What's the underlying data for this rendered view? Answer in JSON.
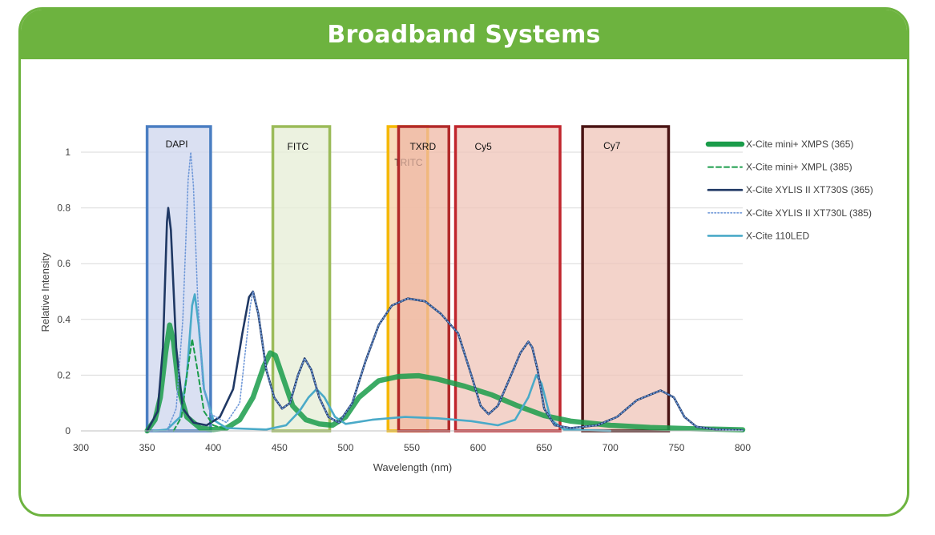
{
  "page": {
    "title": "Broadband Systems"
  },
  "colors": {
    "header_green": "#6db33f",
    "border_green": "#6db33f"
  },
  "chart_data": {
    "type": "line",
    "xlabel": "Wavelength (nm)",
    "ylabel": "Relative Intensity",
    "xlim": [
      300,
      800
    ],
    "ylim": [
      0,
      1
    ],
    "x_ticks": [
      300,
      350,
      400,
      450,
      500,
      550,
      600,
      650,
      700,
      750,
      800
    ],
    "y_ticks": [
      0,
      0.2,
      0.4,
      0.6,
      0.8,
      1
    ],
    "y_tick_labels": [
      "0",
      "0.2",
      "0.4",
      "0.6",
      "0.8",
      "1"
    ],
    "grid": "horizontal",
    "legend": "right",
    "filter_bands": [
      {
        "name": "DAPI",
        "range": [
          350,
          398
        ],
        "fill": "#cdd6ee",
        "stroke": "#4a7ec2"
      },
      {
        "name": "FITC",
        "range": [
          445,
          488
        ],
        "fill": "#e6edd6",
        "stroke": "#9bbb59"
      },
      {
        "name": "TRITC",
        "range": [
          532,
          562
        ],
        "fill": "#f6cfa5",
        "stroke": "#f5b800"
      },
      {
        "name": "TXRD",
        "range": [
          540,
          578
        ],
        "fill": "#efb8a6",
        "stroke": "#b22a2a"
      },
      {
        "name": "Cy5",
        "range": [
          583,
          662
        ],
        "fill": "#efc4b8",
        "stroke": "#c0262d"
      },
      {
        "name": "Cy7",
        "range": [
          679,
          744
        ],
        "fill": "#efc4b8",
        "stroke": "#4a1414"
      }
    ],
    "series": [
      {
        "name": "X-Cite mini+ XMPS (365)",
        "color": "#1a9c4a",
        "style": "thick",
        "points": [
          [
            350,
            0
          ],
          [
            356,
            0.04
          ],
          [
            360,
            0.12
          ],
          [
            364,
            0.28
          ],
          [
            367,
            0.38
          ],
          [
            370,
            0.32
          ],
          [
            374,
            0.15
          ],
          [
            380,
            0.05
          ],
          [
            390,
            0.01
          ],
          [
            400,
            0.005
          ],
          [
            410,
            0.01
          ],
          [
            420,
            0.04
          ],
          [
            430,
            0.12
          ],
          [
            438,
            0.23
          ],
          [
            443,
            0.28
          ],
          [
            447,
            0.27
          ],
          [
            452,
            0.2
          ],
          [
            460,
            0.09
          ],
          [
            470,
            0.04
          ],
          [
            480,
            0.025
          ],
          [
            490,
            0.02
          ],
          [
            500,
            0.05
          ],
          [
            510,
            0.12
          ],
          [
            525,
            0.18
          ],
          [
            540,
            0.195
          ],
          [
            555,
            0.198
          ],
          [
            570,
            0.185
          ],
          [
            590,
            0.16
          ],
          [
            610,
            0.13
          ],
          [
            630,
            0.09
          ],
          [
            650,
            0.055
          ],
          [
            670,
            0.035
          ],
          [
            700,
            0.02
          ],
          [
            730,
            0.012
          ],
          [
            760,
            0.008
          ],
          [
            800,
            0.004
          ]
        ]
      },
      {
        "name": "X-Cite mini+ XMPL (385)",
        "color": "#1a9c4a",
        "style": "dashed",
        "points": [
          [
            370,
            0
          ],
          [
            376,
            0.05
          ],
          [
            380,
            0.2
          ],
          [
            384,
            0.33
          ],
          [
            388,
            0.22
          ],
          [
            393,
            0.07
          ],
          [
            400,
            0.02
          ],
          [
            410,
            0.005
          ]
        ]
      },
      {
        "name": "X-Cite XYLIS II XT730S (365)",
        "color": "#1f3864",
        "style": "solid",
        "points": [
          [
            350,
            0
          ],
          [
            358,
            0.07
          ],
          [
            362,
            0.3
          ],
          [
            365,
            0.75
          ],
          [
            366,
            0.8
          ],
          [
            368,
            0.72
          ],
          [
            372,
            0.3
          ],
          [
            377,
            0.08
          ],
          [
            385,
            0.03
          ],
          [
            395,
            0.02
          ],
          [
            405,
            0.05
          ],
          [
            415,
            0.15
          ],
          [
            422,
            0.35
          ],
          [
            427,
            0.48
          ],
          [
            430,
            0.5
          ],
          [
            434,
            0.42
          ],
          [
            440,
            0.22
          ],
          [
            446,
            0.12
          ],
          [
            452,
            0.08
          ],
          [
            458,
            0.1
          ],
          [
            464,
            0.2
          ],
          [
            469,
            0.26
          ],
          [
            474,
            0.22
          ],
          [
            480,
            0.12
          ],
          [
            487,
            0.05
          ],
          [
            495,
            0.03
          ],
          [
            505,
            0.1
          ],
          [
            515,
            0.25
          ],
          [
            525,
            0.38
          ],
          [
            535,
            0.45
          ],
          [
            547,
            0.475
          ],
          [
            560,
            0.465
          ],
          [
            572,
            0.42
          ],
          [
            585,
            0.35
          ],
          [
            595,
            0.2
          ],
          [
            602,
            0.09
          ],
          [
            608,
            0.06
          ],
          [
            615,
            0.09
          ],
          [
            625,
            0.2
          ],
          [
            632,
            0.28
          ],
          [
            638,
            0.32
          ],
          [
            641,
            0.3
          ],
          [
            645,
            0.22
          ],
          [
            650,
            0.08
          ],
          [
            658,
            0.02
          ],
          [
            670,
            0.01
          ],
          [
            690,
            0.02
          ],
          [
            705,
            0.05
          ],
          [
            720,
            0.11
          ],
          [
            738,
            0.145
          ],
          [
            748,
            0.12
          ],
          [
            756,
            0.05
          ],
          [
            765,
            0.015
          ],
          [
            780,
            0.005
          ],
          [
            800,
            0.002
          ]
        ]
      },
      {
        "name": "X-Cite XYLIS II XT730L (385)",
        "color": "#6f98d8",
        "style": "dotted",
        "points": [
          [
            365,
            0
          ],
          [
            372,
            0.08
          ],
          [
            377,
            0.4
          ],
          [
            381,
            0.9
          ],
          [
            383,
            1.0
          ],
          [
            385,
            0.88
          ],
          [
            388,
            0.5
          ],
          [
            392,
            0.17
          ],
          [
            398,
            0.06
          ],
          [
            410,
            0.03
          ],
          [
            420,
            0.1
          ],
          [
            428,
            0.45
          ],
          [
            430,
            0.5
          ],
          [
            434,
            0.42
          ],
          [
            440,
            0.22
          ],
          [
            446,
            0.12
          ],
          [
            452,
            0.08
          ],
          [
            458,
            0.1
          ],
          [
            464,
            0.2
          ],
          [
            469,
            0.26
          ],
          [
            474,
            0.22
          ],
          [
            480,
            0.12
          ],
          [
            487,
            0.05
          ],
          [
            495,
            0.03
          ],
          [
            505,
            0.1
          ],
          [
            515,
            0.25
          ],
          [
            525,
            0.38
          ],
          [
            535,
            0.45
          ],
          [
            547,
            0.475
          ],
          [
            560,
            0.465
          ],
          [
            572,
            0.42
          ],
          [
            585,
            0.35
          ],
          [
            595,
            0.2
          ],
          [
            602,
            0.09
          ],
          [
            608,
            0.06
          ],
          [
            615,
            0.09
          ],
          [
            625,
            0.2
          ],
          [
            632,
            0.28
          ],
          [
            638,
            0.32
          ],
          [
            641,
            0.3
          ],
          [
            645,
            0.22
          ],
          [
            650,
            0.08
          ],
          [
            658,
            0.02
          ],
          [
            670,
            0.01
          ],
          [
            690,
            0.02
          ],
          [
            705,
            0.05
          ],
          [
            720,
            0.11
          ],
          [
            738,
            0.145
          ],
          [
            748,
            0.12
          ],
          [
            756,
            0.05
          ],
          [
            765,
            0.015
          ],
          [
            780,
            0.005
          ],
          [
            800,
            0.002
          ]
        ]
      },
      {
        "name": "X-Cite 110LED",
        "color": "#4aaac8",
        "style": "solid",
        "points": [
          [
            355,
            0
          ],
          [
            365,
            0.005
          ],
          [
            375,
            0.05
          ],
          [
            380,
            0.2
          ],
          [
            384,
            0.45
          ],
          [
            386,
            0.49
          ],
          [
            389,
            0.38
          ],
          [
            393,
            0.15
          ],
          [
            400,
            0.04
          ],
          [
            410,
            0.01
          ],
          [
            440,
            0.005
          ],
          [
            455,
            0.02
          ],
          [
            465,
            0.07
          ],
          [
            472,
            0.12
          ],
          [
            478,
            0.15
          ],
          [
            484,
            0.12
          ],
          [
            492,
            0.05
          ],
          [
            500,
            0.025
          ],
          [
            520,
            0.04
          ],
          [
            545,
            0.05
          ],
          [
            570,
            0.045
          ],
          [
            595,
            0.035
          ],
          [
            615,
            0.02
          ],
          [
            628,
            0.04
          ],
          [
            638,
            0.12
          ],
          [
            644,
            0.2
          ],
          [
            648,
            0.17
          ],
          [
            655,
            0.04
          ],
          [
            665,
            0.005
          ],
          [
            700,
            0
          ]
        ]
      }
    ]
  }
}
